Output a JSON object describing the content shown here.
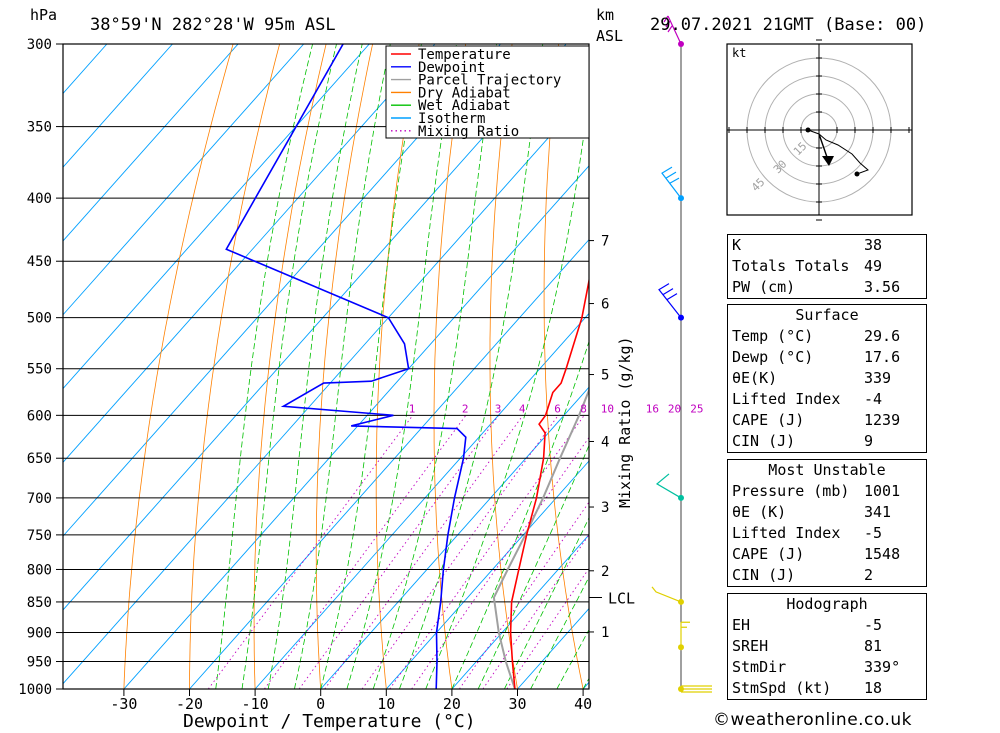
{
  "header": {
    "pressure_unit": "hPa",
    "location": "38°59'N 282°28'W 95m ASL",
    "height_unit_line1": "km",
    "height_unit_line2": "ASL",
    "datetime": "29.07.2021 21GMT (Base: 00)"
  },
  "chart_data": {
    "type": "skew-t",
    "xlabel": "Dewpoint / Temperature (°C)",
    "mixing_ratio_axis_label": "Mixing Ratio (g/kg)",
    "x_ticks": [
      -30,
      -20,
      -10,
      0,
      10,
      20,
      30,
      40
    ],
    "pressure_levels": [
      300,
      350,
      400,
      450,
      500,
      550,
      600,
      650,
      700,
      750,
      800,
      850,
      900,
      950,
      1000
    ],
    "height_ticks_km": [
      {
        "label": "7",
        "p": 433
      },
      {
        "label": "6",
        "p": 487
      },
      {
        "label": "5",
        "p": 556
      },
      {
        "label": "4",
        "p": 630
      },
      {
        "label": "3",
        "p": 712
      },
      {
        "label": "2",
        "p": 802
      },
      {
        "label": "1",
        "p": 899
      }
    ],
    "lcl": {
      "label": "LCL",
      "p": 843
    },
    "mixing_ratio_labels": [
      "1",
      "2",
      "3",
      "4",
      "6",
      "8",
      "10",
      "16",
      "20",
      "25"
    ],
    "hodograph_unit": "kt",
    "hodograph_ring_labels": [
      "15",
      "30",
      "45"
    ],
    "legend": [
      "Temperature",
      "Dewpoint",
      "Parcel Trajectory",
      "Dry Adiabat",
      "Wet Adiabat",
      "Isotherm",
      "Mixing Ratio"
    ],
    "colors": {
      "temperature": "#ff0000",
      "dewpoint": "#0000ff",
      "parcel": "#a0a0a0",
      "dry_adiabat": "#ff8000",
      "wet_adiabat": "#00c000",
      "isotherm": "#00a0ff",
      "mixing_ratio": "#c000c0"
    },
    "temperature": [
      {
        "p": 1000,
        "t": 29.6
      },
      {
        "p": 950,
        "t": 25.5
      },
      {
        "p": 900,
        "t": 21.3
      },
      {
        "p": 850,
        "t": 17.3
      },
      {
        "p": 800,
        "t": 14.0
      },
      {
        "p": 750,
        "t": 10.5
      },
      {
        "p": 700,
        "t": 7.0
      },
      {
        "p": 650,
        "t": 2.7
      },
      {
        "p": 620,
        "t": -0.5
      },
      {
        "p": 610,
        "t": -2.6
      },
      {
        "p": 600,
        "t": -2.8
      },
      {
        "p": 575,
        "t": -4.8
      },
      {
        "p": 565,
        "t": -4.8
      },
      {
        "p": 550,
        "t": -6.0
      },
      {
        "p": 500,
        "t": -10.5
      },
      {
        "p": 450,
        "t": -16.5
      },
      {
        "p": 400,
        "t": -24.5
      },
      {
        "p": 350,
        "t": -34.5
      },
      {
        "p": 300,
        "t": -45.0
      }
    ],
    "dewpoint": [
      {
        "p": 1000,
        "t": 17.6
      },
      {
        "p": 950,
        "t": 14.0
      },
      {
        "p": 900,
        "t": 10.0
      },
      {
        "p": 850,
        "t": 6.5
      },
      {
        "p": 800,
        "t": 2.5
      },
      {
        "p": 750,
        "t": -1.5
      },
      {
        "p": 700,
        "t": -5.5
      },
      {
        "p": 650,
        "t": -9.5
      },
      {
        "p": 625,
        "t": -12.0
      },
      {
        "p": 615,
        "t": -14.5
      },
      {
        "p": 612,
        "t": -31.0
      },
      {
        "p": 600,
        "t": -26.0
      },
      {
        "p": 590,
        "t": -44.0
      },
      {
        "p": 565,
        "t": -41.0
      },
      {
        "p": 563,
        "t": -34.0
      },
      {
        "p": 550,
        "t": -30.0
      },
      {
        "p": 525,
        "t": -34.0
      },
      {
        "p": 500,
        "t": -40.0
      },
      {
        "p": 440,
        "t": -74.0
      },
      {
        "p": 300,
        "t": -84.0
      }
    ],
    "parcel": [
      {
        "p": 1000,
        "t": 29.6
      },
      {
        "p": 950,
        "t": 24.5
      },
      {
        "p": 900,
        "t": 19.5
      },
      {
        "p": 843,
        "t": 14.0
      },
      {
        "p": 800,
        "t": 12.3
      },
      {
        "p": 750,
        "t": 10.3
      },
      {
        "p": 700,
        "t": 8.0
      },
      {
        "p": 650,
        "t": 5.2
      },
      {
        "p": 600,
        "t": 2.3
      },
      {
        "p": 550,
        "t": -1.2
      },
      {
        "p": 500,
        "t": -5.3
      },
      {
        "p": 450,
        "t": -10.3
      },
      {
        "p": 400,
        "t": -16.5
      },
      {
        "p": 350,
        "t": -24.5
      },
      {
        "p": 300,
        "t": -35.5
      }
    ],
    "wind_barbs": [
      {
        "p": 300,
        "color": "#c000c0"
      },
      {
        "p": 400,
        "color": "#00a0ff"
      },
      {
        "p": 500,
        "color": "#0000ff"
      },
      {
        "p": 700,
        "color": "#00c0a0"
      },
      {
        "p": 850,
        "color": "#e0d000"
      },
      {
        "p": 925,
        "color": "#e0d000"
      },
      {
        "p": 1000,
        "color": "#e0d000"
      }
    ]
  },
  "indices": [
    {
      "label": "K",
      "value": "38"
    },
    {
      "label": "Totals Totals",
      "value": "49"
    },
    {
      "label": "PW (cm)",
      "value": "3.56"
    }
  ],
  "surface": {
    "title": "Surface",
    "rows": [
      {
        "label": "Temp (°C)",
        "value": "29.6"
      },
      {
        "label": "Dewp (°C)",
        "value": "17.6"
      },
      {
        "label": "θE(K)",
        "value": "339"
      },
      {
        "label": "Lifted Index",
        "value": "-4"
      },
      {
        "label": "CAPE (J)",
        "value": "1239"
      },
      {
        "label": "CIN (J)",
        "value": "9"
      }
    ]
  },
  "most_unstable": {
    "title": "Most Unstable",
    "rows": [
      {
        "label": "Pressure (mb)",
        "value": "1001"
      },
      {
        "label": "θE (K)",
        "value": "341"
      },
      {
        "label": "Lifted Index",
        "value": "-5"
      },
      {
        "label": "CAPE (J)",
        "value": "1548"
      },
      {
        "label": "CIN (J)",
        "value": "2"
      }
    ]
  },
  "hodograph": {
    "title": "Hodograph",
    "rows": [
      {
        "label": "EH",
        "value": "-5"
      },
      {
        "label": "SREH",
        "value": "81"
      },
      {
        "label": "StmDir",
        "value": "339°"
      },
      {
        "label": "StmSpd (kt)",
        "value": "18"
      }
    ]
  },
  "copyright": "©weatheronline.co.uk"
}
